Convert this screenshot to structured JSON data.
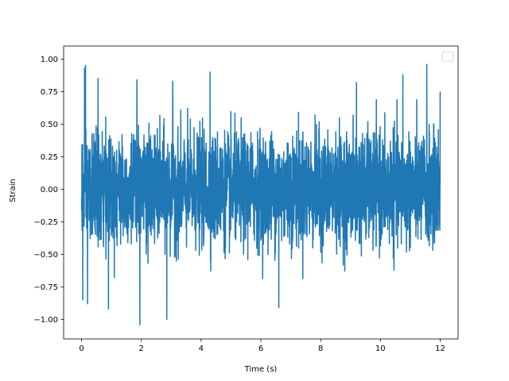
{
  "chart_data": {
    "type": "line",
    "title": "",
    "xlabel": "Time (s)",
    "ylabel": "Strain",
    "xlim": [
      -0.6,
      12.6
    ],
    "ylim": [
      -1.15,
      1.1
    ],
    "xticks": [
      0,
      2,
      4,
      6,
      8,
      10,
      12
    ],
    "xtick_labels": [
      "0",
      "2",
      "4",
      "6",
      "8",
      "10",
      "12"
    ],
    "yticks": [
      -1.0,
      -0.75,
      -0.5,
      -0.25,
      0.0,
      0.25,
      0.5,
      0.75,
      1.0
    ],
    "ytick_labels": [
      "−1.00",
      "−0.75",
      "−0.50",
      "−0.25",
      "0.00",
      "0.25",
      "0.50",
      "0.75",
      "1.00"
    ],
    "grid": false,
    "legend": {
      "placement": "top-right",
      "entries": []
    },
    "series": [
      {
        "color": "#1f77b4",
        "x_range": [
          0,
          12
        ],
        "envelope": {
          "typical_abs_max": 0.55,
          "peak_max": 0.95,
          "peak_min": -1.04
        },
        "spikes": [
          {
            "x": 0.1,
            "y": 0.93
          },
          {
            "x": 0.13,
            "y": 0.95
          },
          {
            "x": 0.04,
            "y": -0.85
          },
          {
            "x": 0.2,
            "y": -0.88
          },
          {
            "x": 0.55,
            "y": 0.85
          },
          {
            "x": 0.9,
            "y": -0.92
          },
          {
            "x": 1.85,
            "y": 0.84
          },
          {
            "x": 1.95,
            "y": -1.04
          },
          {
            "x": 2.85,
            "y": -1.0
          },
          {
            "x": 3.05,
            "y": 0.83
          },
          {
            "x": 4.3,
            "y": 0.9
          },
          {
            "x": 6.6,
            "y": -0.91
          },
          {
            "x": 9.2,
            "y": 0.82
          },
          {
            "x": 10.75,
            "y": 0.88
          },
          {
            "x": 11.55,
            "y": 0.96
          },
          {
            "x": 12.0,
            "y": 0.75
          }
        ]
      }
    ]
  }
}
